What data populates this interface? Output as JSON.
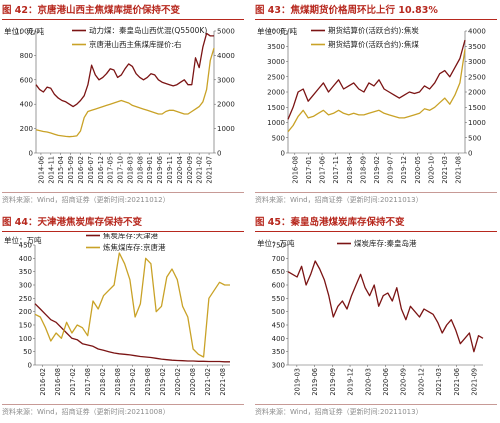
{
  "colors": {
    "title": "#b7281e",
    "dark_red": "#7b1414",
    "gold": "#c9a227",
    "source": "#8c8c8c"
  },
  "chart_data": [
    {
      "type": "line",
      "title": "图 42：京唐港山西主焦煤库提价保持不变",
      "source": "资料来源：Wind，招商证券（更新时间:20211012）",
      "ylabel": "单位：元/吨",
      "ylim": [
        0,
        1000
      ],
      "yticks": [
        0,
        200,
        400,
        600,
        800,
        1000
      ],
      "y2lim": [
        0,
        5000
      ],
      "y2ticks": [
        0,
        1000,
        2000,
        3000,
        4000,
        5000
      ],
      "x_ticks": [
        "2014-06",
        "2014-11",
        "2015-04",
        "2015-09",
        "2016-02",
        "2016-07",
        "2016-12",
        "2017-05",
        "2017-10",
        "2018-03",
        "2018-08",
        "2019-01",
        "2019-06",
        "2019-11",
        "2020-04",
        "2020-09",
        "2021-02",
        "2021-07"
      ],
      "series": [
        {
          "name": "动力煤：秦皇岛山西优混(Q5500K)",
          "axis": "left",
          "color": "dark_red",
          "values": [
            560,
            520,
            500,
            540,
            530,
            480,
            450,
            430,
            420,
            400,
            380,
            400,
            430,
            470,
            560,
            720,
            640,
            600,
            620,
            650,
            690,
            680,
            620,
            640,
            690,
            730,
            710,
            650,
            620,
            600,
            620,
            650,
            640,
            600,
            580,
            570,
            560,
            550,
            560,
            580,
            600,
            560,
            560,
            780,
            700,
            870,
            980,
            960,
            960
          ]
        },
        {
          "name": "京唐港山西主焦煤库提价:右",
          "axis": "right",
          "color": "gold",
          "values": [
            950,
            920,
            880,
            860,
            820,
            770,
            720,
            700,
            680,
            670,
            680,
            700,
            900,
            1450,
            1700,
            1750,
            1800,
            1850,
            1900,
            1950,
            2000,
            2050,
            2100,
            2150,
            2100,
            2050,
            1950,
            1900,
            1850,
            1800,
            1750,
            1700,
            1650,
            1600,
            1600,
            1700,
            1750,
            1750,
            1700,
            1650,
            1600,
            1600,
            1700,
            1800,
            1900,
            2100,
            2600,
            3800,
            4300
          ]
        }
      ]
    },
    {
      "type": "line",
      "title": "图 43：焦煤期货价格周环比上行 10.83%",
      "source": "资料来源：Wind，招商证券（更新时间:20211013）",
      "ylabel": "单位：元/吨",
      "ylim": [
        0,
        4000
      ],
      "yticks": [
        0,
        500,
        1000,
        1500,
        2000,
        2500,
        3000,
        3500,
        4000
      ],
      "y2lim": [
        0,
        4000
      ],
      "y2ticks": [
        0,
        500,
        1000,
        1500,
        2000,
        2500,
        3000,
        3500,
        4000
      ],
      "x_ticks": [
        "2016-08",
        "2017-01",
        "2017-06",
        "2017-11",
        "2018-04",
        "2018-09",
        "2019-02",
        "2019-07",
        "2019-12",
        "2020-05",
        "2020-10",
        "2021-03",
        "2021-08"
      ],
      "series": [
        {
          "name": "期货结算价(活跃合约):焦炭",
          "axis": "left",
          "color": "dark_red",
          "values": [
            1100,
            1500,
            2000,
            2100,
            1700,
            1900,
            2100,
            2300,
            2000,
            2200,
            2400,
            2100,
            2200,
            2300,
            2100,
            2000,
            2300,
            2200,
            2400,
            2100,
            2000,
            1900,
            1800,
            1900,
            2000,
            1950,
            2000,
            2200,
            2100,
            2300,
            2600,
            2700,
            2500,
            2800,
            3100,
            3700
          ]
        },
        {
          "name": "期货结算价(活跃合约):焦煤",
          "axis": "right",
          "color": "gold",
          "values": [
            700,
            900,
            1200,
            1400,
            1150,
            1200,
            1300,
            1400,
            1250,
            1300,
            1400,
            1300,
            1250,
            1300,
            1250,
            1250,
            1300,
            1350,
            1400,
            1300,
            1250,
            1200,
            1150,
            1150,
            1200,
            1250,
            1300,
            1450,
            1400,
            1500,
            1650,
            1800,
            1600,
            1900,
            2300,
            3400
          ]
        }
      ]
    },
    {
      "type": "line",
      "title": "图 44：天津港焦炭库存保持不变",
      "source": "资料来源：Wind，招商证券（更新时间:20211008）",
      "ylabel": "单位：万吨",
      "ylim": [
        0,
        450
      ],
      "yticks": [
        0,
        50,
        100,
        150,
        200,
        250,
        300,
        350,
        400,
        450
      ],
      "x_ticks": [
        "2016-02",
        "2016-08",
        "2017-02",
        "2017-08",
        "2018-02",
        "2018-08",
        "2019-02",
        "2019-08",
        "2019-02",
        "2020-02",
        "2020-08",
        "2021-02",
        "2021-08"
      ],
      "series": [
        {
          "name": "焦炭库存:天津港",
          "axis": "left",
          "color": "dark_red",
          "values": [
            230,
            210,
            190,
            170,
            160,
            140,
            120,
            100,
            95,
            80,
            75,
            70,
            60,
            55,
            50,
            45,
            42,
            40,
            38,
            35,
            32,
            30,
            28,
            25,
            22,
            20,
            18,
            17,
            16,
            15,
            15,
            14,
            14,
            13,
            13,
            13,
            12,
            12
          ]
        },
        {
          "name": "炼焦煤库存:京唐港",
          "axis": "left",
          "color": "gold",
          "values": [
            190,
            180,
            140,
            90,
            120,
            100,
            160,
            120,
            150,
            140,
            110,
            240,
            210,
            260,
            280,
            300,
            420,
            380,
            320,
            180,
            230,
            400,
            380,
            200,
            220,
            330,
            360,
            320,
            220,
            180,
            60,
            40,
            30,
            250,
            280,
            310,
            300,
            300
          ]
        }
      ]
    },
    {
      "type": "line",
      "title": "图 45：秦皇岛港煤炭库存保持不变",
      "source": "资料来源：Wind，招商证券（更新时间:20211013）",
      "ylabel": "单位：万吨",
      "ylim": [
        300,
        750
      ],
      "yticks": [
        300,
        350,
        400,
        450,
        500,
        550,
        600,
        650,
        700,
        750
      ],
      "x_ticks": [
        "2019-03",
        "2019-06",
        "2019-09",
        "2019-12",
        "2020-03",
        "2020-06",
        "2020-09",
        "2020-12",
        "2021-03",
        "2021-06",
        "2021-09"
      ],
      "series": [
        {
          "name": "煤炭库存:秦皇岛港",
          "axis": "left",
          "color": "dark_red",
          "values": [
            650,
            640,
            630,
            670,
            600,
            640,
            690,
            660,
            620,
            560,
            480,
            520,
            540,
            510,
            560,
            600,
            640,
            590,
            560,
            600,
            520,
            560,
            570,
            540,
            590,
            510,
            470,
            520,
            500,
            480,
            510,
            500,
            490,
            460,
            420,
            450,
            470,
            430,
            380,
            400,
            420,
            350,
            410,
            400
          ]
        }
      ]
    }
  ]
}
